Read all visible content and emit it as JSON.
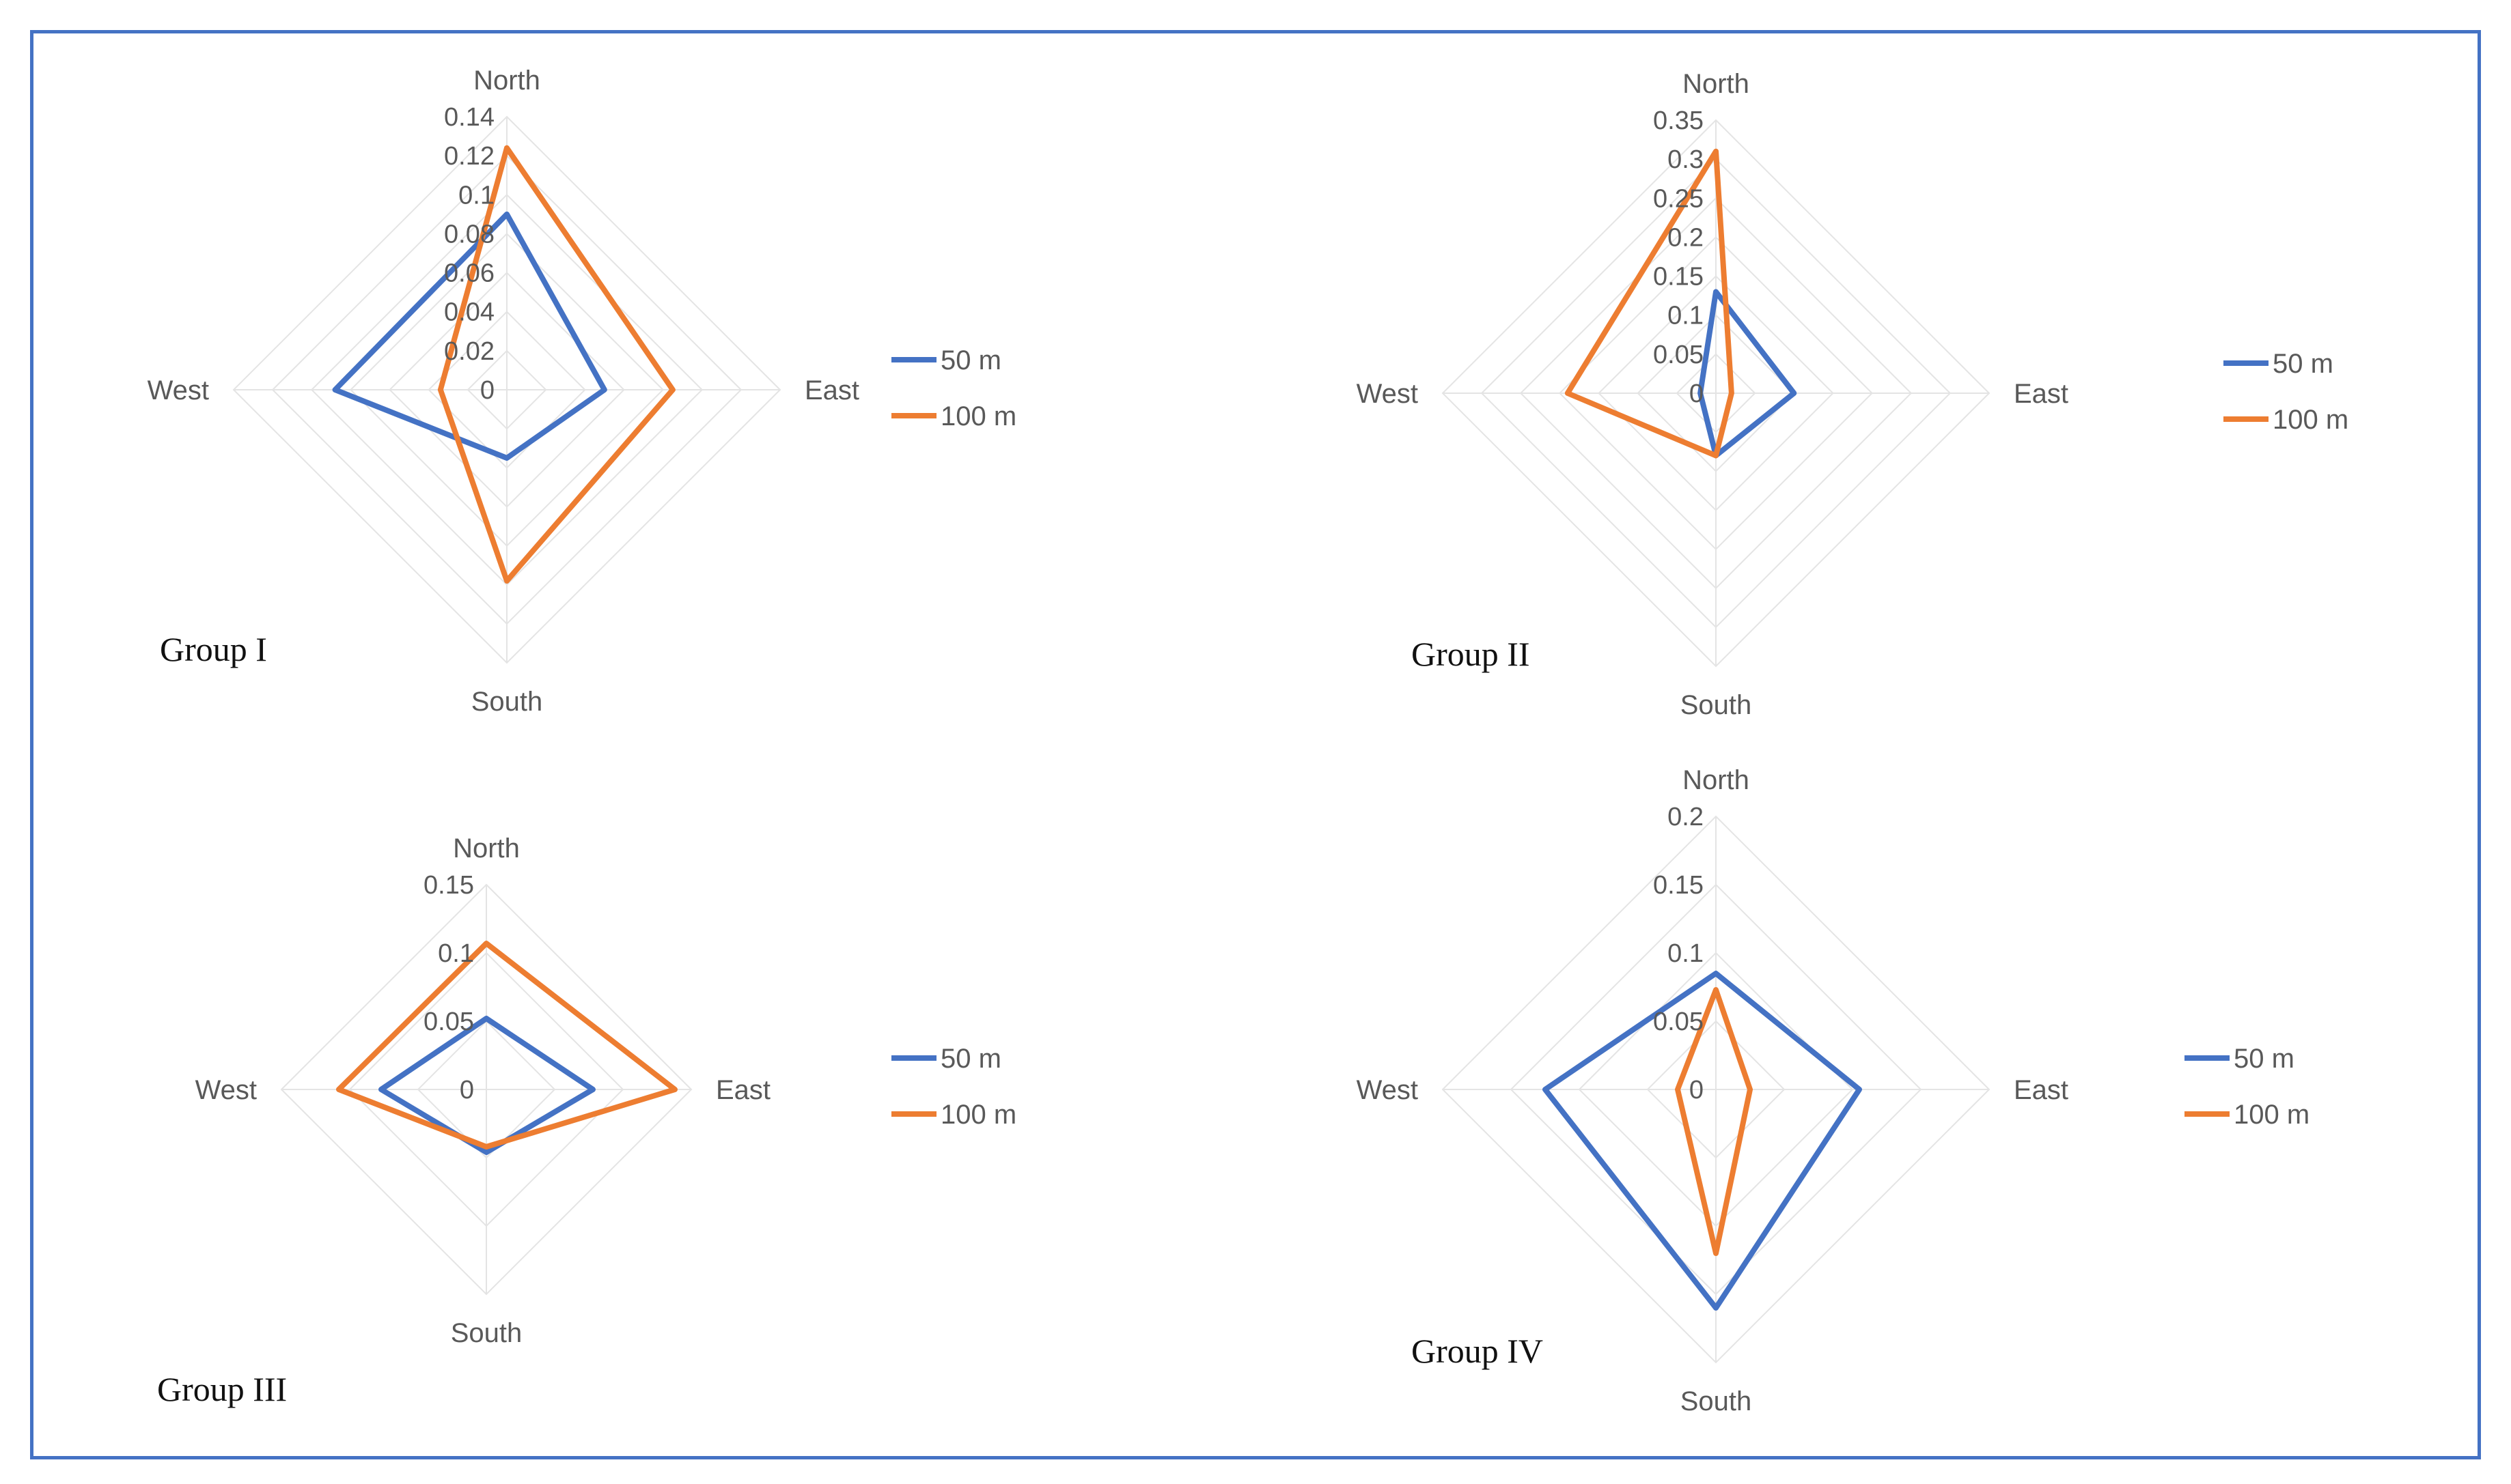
{
  "colors": {
    "frame": "#4472C4",
    "series_50m": "#4472C4",
    "series_100m": "#ED7D31",
    "grid": "#E4E4E4",
    "text": "#595959"
  },
  "chart_data": [
    {
      "type": "radar",
      "title": "Group I",
      "axes": [
        "North",
        "East",
        "South",
        "West"
      ],
      "ticks": [
        "0",
        "0.02",
        "0.04",
        "0.06",
        "0.08",
        "0.1",
        "0.12",
        "0.14"
      ],
      "rmax": 0.14,
      "series": [
        {
          "name": "50 m",
          "values": [
            0.09,
            0.05,
            0.035,
            0.088
          ]
        },
        {
          "name": "100 m",
          "values": [
            0.124,
            0.085,
            0.098,
            0.034
          ]
        }
      ]
    },
    {
      "type": "radar",
      "title": "Group II",
      "axes": [
        "North",
        "East",
        "South",
        "West"
      ],
      "ticks": [
        "0",
        "0.05",
        "0.1",
        "0.15",
        "0.2",
        "0.25",
        "0.3",
        "0.35"
      ],
      "rmax": 0.35,
      "series": [
        {
          "name": "50 m",
          "values": [
            0.13,
            0.1,
            0.08,
            0.02
          ]
        },
        {
          "name": "100 m",
          "values": [
            0.31,
            0.02,
            0.08,
            0.19
          ]
        }
      ]
    },
    {
      "type": "radar",
      "title": "Group III",
      "axes": [
        "North",
        "East",
        "South",
        "West"
      ],
      "ticks": [
        "0",
        "0.05",
        "0.1",
        "0.15"
      ],
      "rmax": 0.15,
      "series": [
        {
          "name": "50 m",
          "values": [
            0.052,
            0.078,
            0.046,
            0.077
          ]
        },
        {
          "name": "100 m",
          "values": [
            0.107,
            0.138,
            0.042,
            0.108
          ]
        }
      ]
    },
    {
      "type": "radar",
      "title": "Group IV",
      "axes": [
        "North",
        "East",
        "South",
        "West"
      ],
      "ticks": [
        "0",
        "0.05",
        "0.1",
        "0.15",
        "0.2"
      ],
      "rmax": 0.2,
      "series": [
        {
          "name": "50 m",
          "values": [
            0.085,
            0.105,
            0.16,
            0.125
          ]
        },
        {
          "name": "100 m",
          "values": [
            0.073,
            0.025,
            0.12,
            0.028
          ]
        }
      ]
    }
  ]
}
